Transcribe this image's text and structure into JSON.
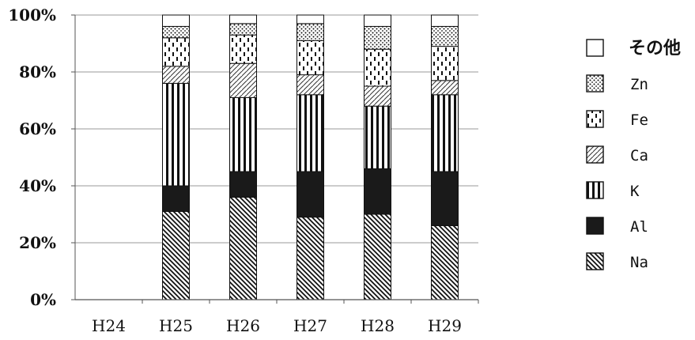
{
  "chart_data": {
    "type": "bar",
    "stacked": true,
    "title": "",
    "xlabel": "",
    "ylabel": "",
    "ylim": [
      0,
      100
    ],
    "yticks": [
      "0%",
      "20%",
      "40%",
      "60%",
      "80%",
      "100%"
    ],
    "grid": true,
    "legend_position": "right",
    "categories": [
      "H24",
      "H25",
      "H26",
      "H27",
      "H28",
      "H29"
    ],
    "series": [
      {
        "name": "Na",
        "pattern": "diagonal-dense",
        "values": [
          0,
          31,
          36,
          29,
          30,
          26
        ]
      },
      {
        "name": "Al",
        "pattern": "solid-black",
        "values": [
          0,
          9,
          9,
          16,
          16,
          19
        ]
      },
      {
        "name": "K",
        "pattern": "vertical-stripes",
        "values": [
          0,
          36,
          26,
          27,
          22,
          27
        ]
      },
      {
        "name": "Ca",
        "pattern": "diagonal-light",
        "values": [
          0,
          6,
          12,
          7,
          7,
          5
        ]
      },
      {
        "name": "Fe",
        "pattern": "vertical-dashes",
        "values": [
          0,
          10,
          10,
          12,
          13,
          12
        ]
      },
      {
        "name": "Zn",
        "pattern": "dots",
        "values": [
          0,
          4,
          4,
          6,
          8,
          7
        ]
      },
      {
        "name": "その他",
        "pattern": "white",
        "values": [
          0,
          4,
          3,
          3,
          4,
          4
        ]
      }
    ]
  }
}
